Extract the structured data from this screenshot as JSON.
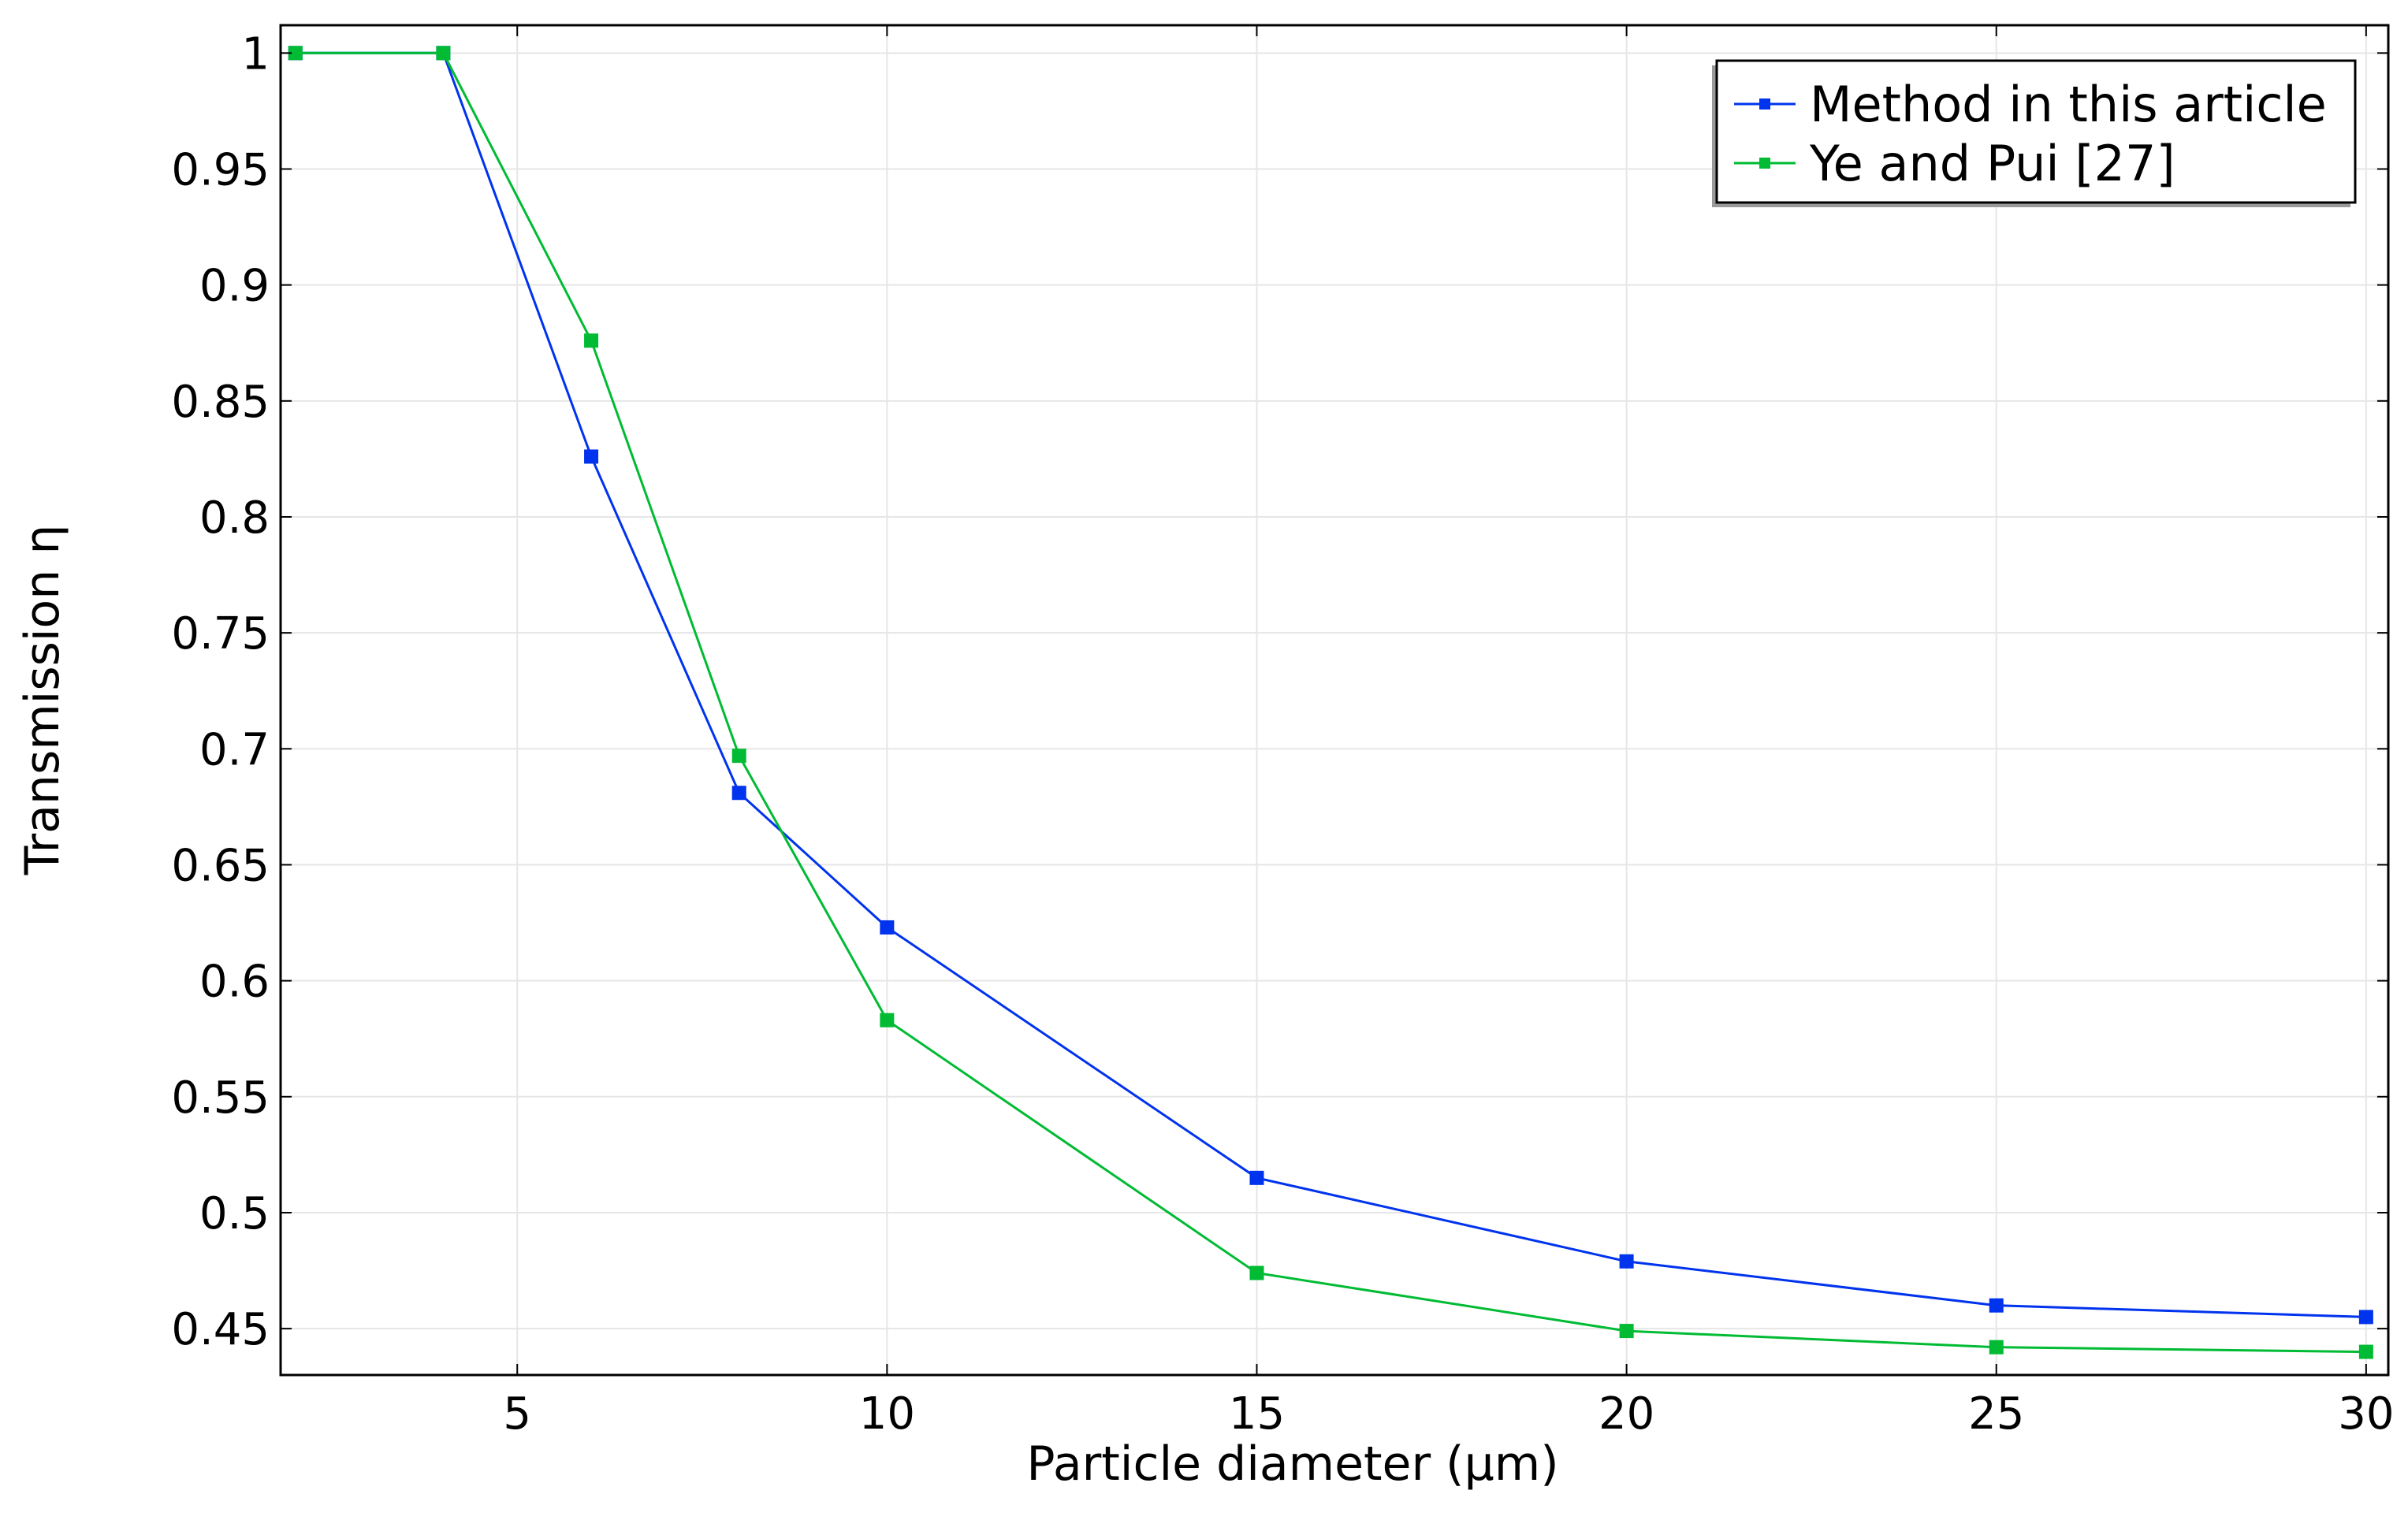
{
  "chart_data": {
    "type": "line",
    "title": "",
    "xlabel": "Particle diameter (µm)",
    "ylabel": "Transmission η",
    "xlim": [
      1.8,
      30.3
    ],
    "ylim": [
      0.43,
      1.012
    ],
    "x": [
      2,
      4,
      6,
      8,
      10,
      15,
      20,
      25,
      30
    ],
    "xticks": [
      5,
      10,
      15,
      20,
      25,
      30
    ],
    "xtick_labels": [
      "5",
      "10",
      "15",
      "20",
      "25",
      "30"
    ],
    "yticks": [
      0.45,
      0.5,
      0.55,
      0.6,
      0.65,
      0.7,
      0.75,
      0.8,
      0.85,
      0.9,
      0.95,
      1
    ],
    "ytick_labels": [
      "0.45",
      "0.5",
      "0.55",
      "0.6",
      "0.65",
      "0.7",
      "0.75",
      "0.8",
      "0.85",
      "0.9",
      "0.95",
      "1"
    ],
    "grid": true,
    "legend_position": "top-right",
    "series": [
      {
        "name": "Method in this article",
        "color": "#0033ee",
        "values": [
          1.0,
          1.0,
          0.826,
          0.681,
          0.623,
          0.515,
          0.479,
          0.46,
          0.455
        ]
      },
      {
        "name": "Ye and Pui [27]",
        "color": "#00bb33",
        "values": [
          1.0,
          1.0,
          0.876,
          0.697,
          0.583,
          0.474,
          0.449,
          0.442,
          0.44
        ]
      }
    ]
  }
}
